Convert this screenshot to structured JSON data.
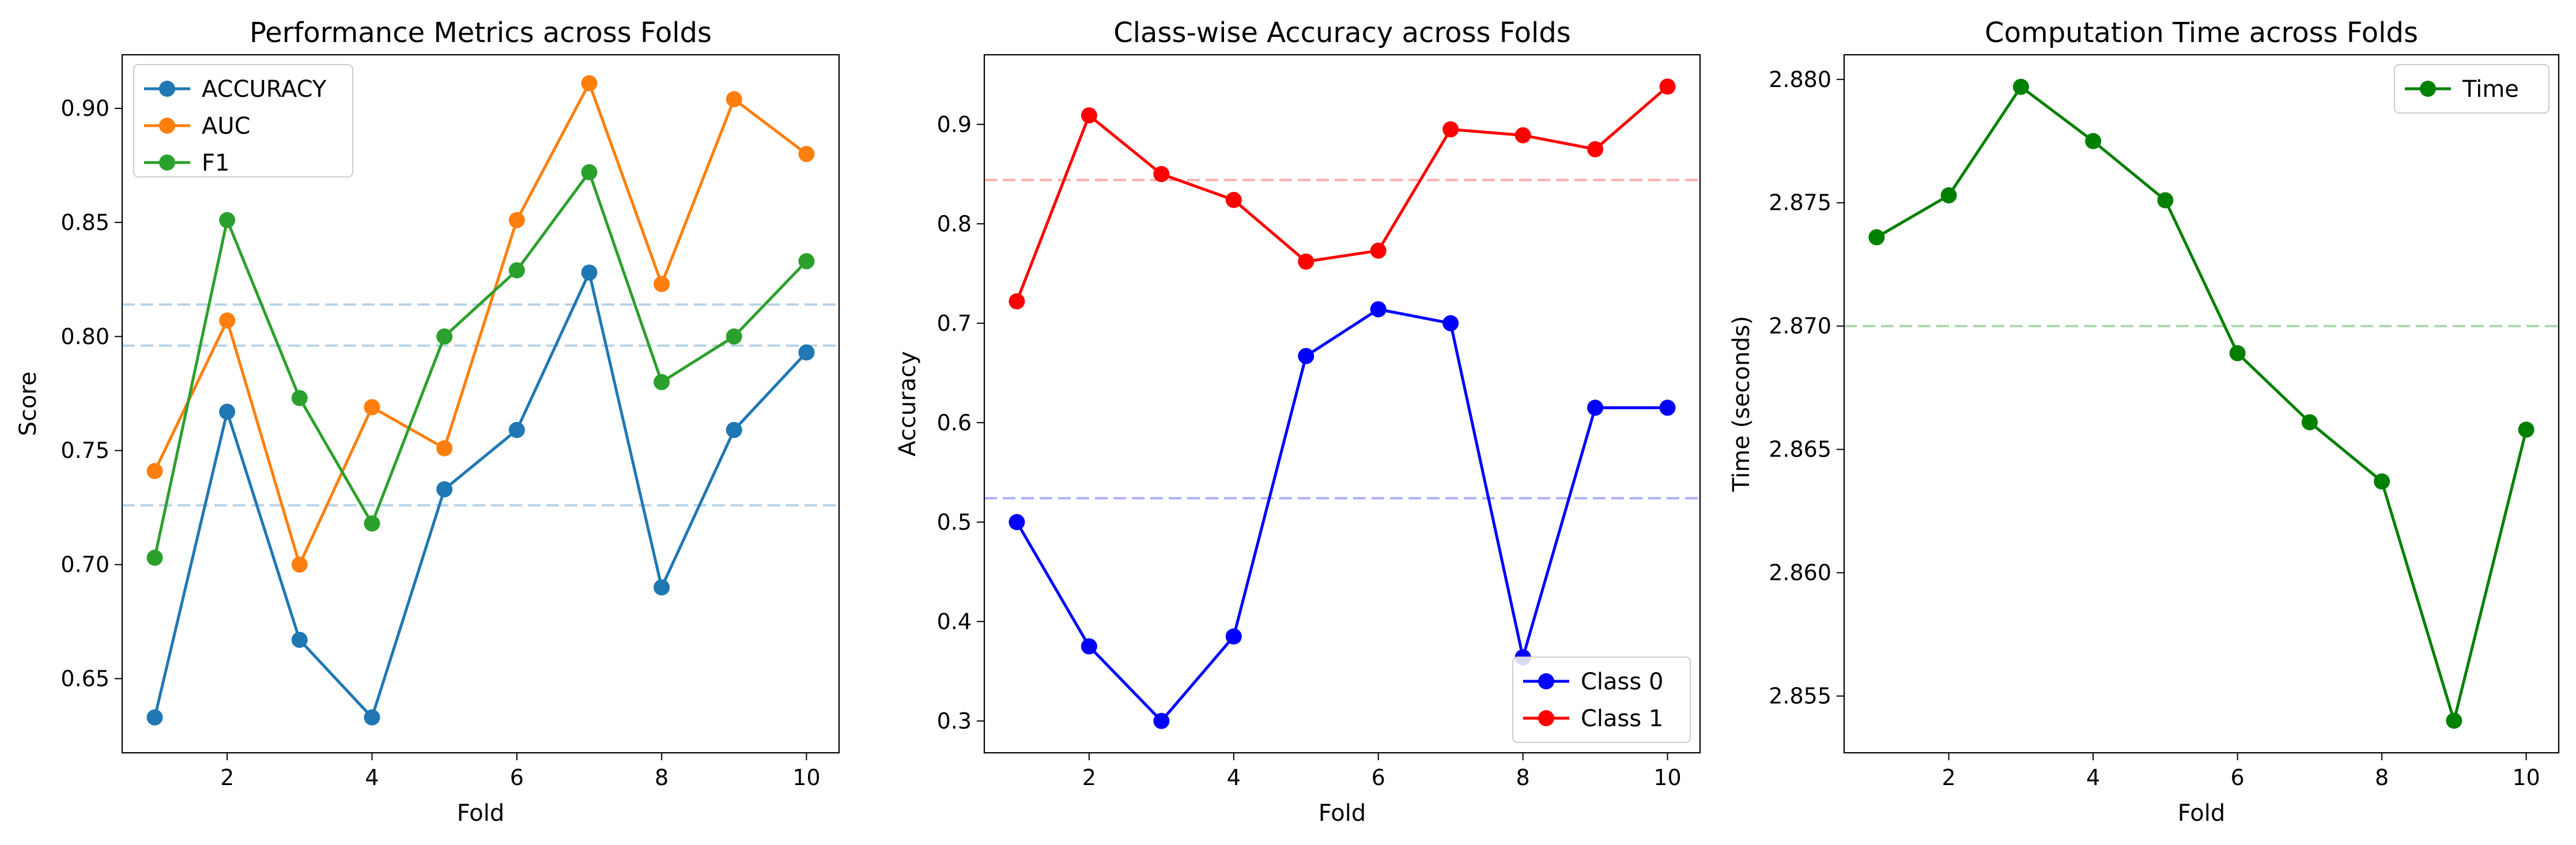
{
  "chart_data": [
    {
      "type": "line",
      "title": "Performance Metrics across Folds",
      "xlabel": "Fold",
      "ylabel": "Score",
      "xlim": [
        0.55,
        10.45
      ],
      "ylim": [
        0.6175,
        0.9235
      ],
      "xticks": [
        2,
        4,
        6,
        8,
        10
      ],
      "yticks": [
        0.65,
        0.7,
        0.75,
        0.8,
        0.85,
        0.9
      ],
      "ytick_labels": [
        "0.65",
        "0.70",
        "0.75",
        "0.80",
        "0.85",
        "0.90"
      ],
      "x": [
        1,
        2,
        3,
        4,
        5,
        6,
        7,
        8,
        9,
        10
      ],
      "series": [
        {
          "name": "ACCURACY",
          "color": "#1f77b4",
          "values": [
            0.633,
            0.767,
            0.667,
            0.633,
            0.733,
            0.759,
            0.828,
            0.69,
            0.759,
            0.793
          ]
        },
        {
          "name": "AUC",
          "color": "#ff7f0e",
          "values": [
            0.741,
            0.807,
            0.7,
            0.769,
            0.751,
            0.851,
            0.911,
            0.823,
            0.904,
            0.88
          ]
        },
        {
          "name": "F1",
          "color": "#2ca02c",
          "values": [
            0.703,
            0.851,
            0.773,
            0.718,
            0.8,
            0.829,
            0.872,
            0.78,
            0.8,
            0.833
          ]
        }
      ],
      "mean_lines": [
        {
          "value": 0.726,
          "color": "#1f77b4"
        },
        {
          "value": 0.814,
          "color": "#1f77b4"
        },
        {
          "value": 0.796,
          "color": "#1f77b4"
        }
      ],
      "grid": false,
      "legend": "top-left"
    },
    {
      "type": "line",
      "title": "Class-wise Accuracy across Folds",
      "xlabel": "Fold",
      "ylabel": "Accuracy",
      "xlim": [
        0.55,
        10.45
      ],
      "ylim": [
        0.268,
        0.97
      ],
      "xticks": [
        2,
        4,
        6,
        8,
        10
      ],
      "yticks": [
        0.3,
        0.4,
        0.5,
        0.6,
        0.7,
        0.8,
        0.9
      ],
      "ytick_labels": [
        "0.3",
        "0.4",
        "0.5",
        "0.6",
        "0.7",
        "0.8",
        "0.9"
      ],
      "x": [
        1,
        2,
        3,
        4,
        5,
        6,
        7,
        8,
        9,
        10
      ],
      "series": [
        {
          "name": "Class 0",
          "color": "#0000ff",
          "values": [
            0.5,
            0.375,
            0.3,
            0.385,
            0.667,
            0.714,
            0.7,
            0.364,
            0.615,
            0.615
          ]
        },
        {
          "name": "Class 1",
          "color": "#ff0000",
          "values": [
            0.722,
            0.909,
            0.85,
            0.824,
            0.762,
            0.773,
            0.895,
            0.889,
            0.875,
            0.938
          ]
        }
      ],
      "mean_lines": [
        {
          "value": 0.524,
          "color": "#0000ff"
        },
        {
          "value": 0.844,
          "color": "#ff0000"
        }
      ],
      "grid": false,
      "legend": "bottom-right"
    },
    {
      "type": "line",
      "title": "Computation Time across Folds",
      "xlabel": "Fold",
      "ylabel": "Time (seconds)",
      "xlim": [
        0.55,
        10.45
      ],
      "ylim": [
        2.8527,
        2.881
      ],
      "xticks": [
        2,
        4,
        6,
        8,
        10
      ],
      "yticks": [
        2.855,
        2.86,
        2.865,
        2.87,
        2.875,
        2.88
      ],
      "ytick_labels": [
        "2.855",
        "2.860",
        "2.865",
        "2.870",
        "2.875",
        "2.880"
      ],
      "x": [
        1,
        2,
        3,
        4,
        5,
        6,
        7,
        8,
        9,
        10
      ],
      "series": [
        {
          "name": "Time",
          "color": "#008000",
          "values": [
            2.8736,
            2.8753,
            2.8797,
            2.8775,
            2.8751,
            2.8689,
            2.8661,
            2.8637,
            2.854,
            2.8658
          ]
        }
      ],
      "mean_lines": [
        {
          "value": 2.87,
          "color": "#008000"
        }
      ],
      "grid": false,
      "legend": "top-right"
    }
  ]
}
